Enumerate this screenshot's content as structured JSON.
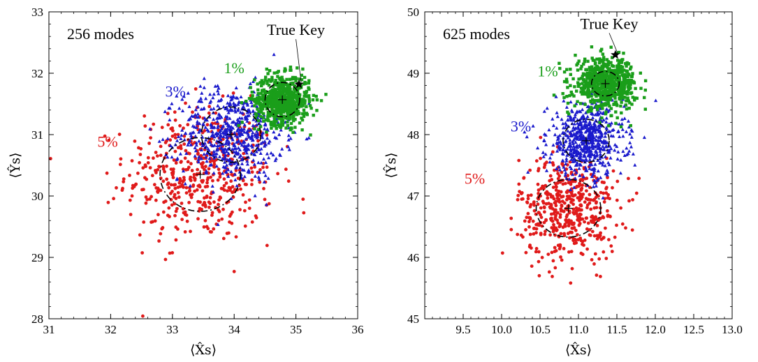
{
  "chart_data": [
    {
      "type": "scatter",
      "annotation": "256 modes",
      "xlabel": "⟨X̂s⟩",
      "ylabel": "⟨Ŷs⟩",
      "xlim": [
        31,
        36
      ],
      "ylim": [
        28,
        33
      ],
      "xticks": [
        31,
        32,
        33,
        34,
        35,
        36
      ],
      "yticks": [
        28,
        29,
        30,
        31,
        32,
        33
      ],
      "true_key": {
        "label": "True Key",
        "x": 35.05,
        "y": 31.82,
        "label_x": 35.0,
        "label_y": 32.6
      },
      "series": [
        {
          "label": "1%",
          "color": "#1a9e1a",
          "marker": "square",
          "center": [
            34.78,
            31.57
          ],
          "spread": [
            0.22,
            0.2
          ],
          "count": 650,
          "circle_r": [
            0.28,
            0.28
          ],
          "label_pos": [
            34.0,
            32.0
          ]
        },
        {
          "label": "3%",
          "color": "#1a1acc",
          "marker": "triangle",
          "center": [
            33.95,
            31.0
          ],
          "spread": [
            0.42,
            0.38
          ],
          "count": 600,
          "circle_r": [
            0.48,
            0.45
          ],
          "label_pos": [
            33.05,
            31.62
          ]
        },
        {
          "label": "5%",
          "color": "#e01a1a",
          "marker": "circle",
          "center": [
            33.45,
            30.35
          ],
          "spread": [
            0.6,
            0.55
          ],
          "count": 500,
          "circle_r": [
            0.65,
            0.6
          ],
          "label_pos": [
            31.95,
            30.8
          ]
        }
      ]
    },
    {
      "type": "scatter",
      "annotation": "625 modes",
      "xlabel": "⟨X̂s⟩",
      "ylabel": "⟨Ŷs⟩",
      "xlim": [
        9.0,
        13.0
      ],
      "ylim": [
        45,
        50
      ],
      "xticks": [
        9.5,
        10.0,
        10.5,
        11.0,
        11.5,
        12.0,
        12.5,
        13.0
      ],
      "xtick_labels": [
        "9.5",
        "10.0",
        "10.5",
        "11.0",
        "11.5",
        "12.0",
        "12.5",
        "13.0"
      ],
      "yticks": [
        45,
        46,
        47,
        48,
        49,
        50
      ],
      "true_key": {
        "label": "True Key",
        "x": 11.48,
        "y": 49.3,
        "label_x": 11.4,
        "label_y": 49.7
      },
      "series": [
        {
          "label": "1%",
          "color": "#1a9e1a",
          "marker": "square",
          "center": [
            11.35,
            48.83
          ],
          "spread": [
            0.2,
            0.2
          ],
          "count": 650,
          "circle_r": [
            0.18,
            0.2
          ],
          "label_pos": [
            10.6,
            48.95
          ]
        },
        {
          "label": "3%",
          "color": "#1a1acc",
          "marker": "triangle",
          "center": [
            11.1,
            47.9
          ],
          "spread": [
            0.25,
            0.3
          ],
          "count": 600,
          "circle_r": [
            0.3,
            0.35
          ],
          "label_pos": [
            10.25,
            48.05
          ]
        },
        {
          "label": "5%",
          "color": "#e01a1a",
          "marker": "circle",
          "center": [
            10.87,
            46.8
          ],
          "spread": [
            0.32,
            0.42
          ],
          "count": 500,
          "circle_r": [
            0.42,
            0.47
          ],
          "label_pos": [
            9.65,
            47.2
          ]
        }
      ]
    }
  ]
}
